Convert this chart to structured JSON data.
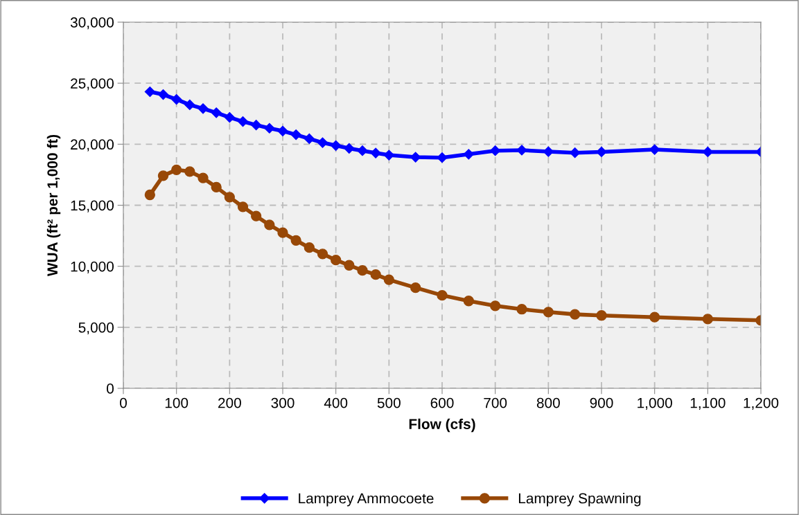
{
  "chart_data": {
    "type": "line",
    "xlabel": "Flow (cfs)",
    "ylabel": "WUA (ft² per 1,000 ft)",
    "x": [
      50,
      75,
      100,
      125,
      150,
      175,
      200,
      225,
      250,
      275,
      300,
      325,
      350,
      375,
      400,
      425,
      450,
      475,
      500,
      550,
      600,
      650,
      700,
      750,
      800,
      850,
      900,
      1000,
      1100,
      1200
    ],
    "series": [
      {
        "name": "Lamprey Ammocoete",
        "color": "#0000ff",
        "marker": "diamond",
        "values": [
          24300,
          24070,
          23670,
          23230,
          22920,
          22580,
          22200,
          21860,
          21570,
          21310,
          21080,
          20780,
          20450,
          20130,
          19890,
          19660,
          19470,
          19280,
          19110,
          18940,
          18900,
          19180,
          19470,
          19510,
          19390,
          19300,
          19370,
          19560,
          19370,
          19370
        ]
      },
      {
        "name": "Lamprey Spawning",
        "color": "#984807",
        "marker": "circle",
        "values": [
          15850,
          17420,
          17900,
          17760,
          17230,
          16480,
          15660,
          14870,
          14110,
          13390,
          12750,
          12120,
          11530,
          11010,
          10510,
          10080,
          9660,
          9320,
          8900,
          8240,
          7620,
          7160,
          6760,
          6480,
          6250,
          6060,
          5970,
          5830,
          5680,
          5570
        ]
      }
    ],
    "xlim": [
      0,
      1200
    ],
    "ylim": [
      0,
      30000
    ],
    "xticks": [
      0,
      100,
      200,
      300,
      400,
      500,
      600,
      700,
      800,
      900,
      {
        "value": 1000,
        "label": "1,000"
      },
      {
        "value": 1100,
        "label": "1,100"
      },
      {
        "value": 1200,
        "label": "1,200"
      }
    ],
    "yticks": [
      0,
      {
        "value": 5000,
        "label": "5,000"
      },
      {
        "value": 10000,
        "label": "10,000"
      },
      {
        "value": 15000,
        "label": "15,000"
      },
      {
        "value": 20000,
        "label": "20,000"
      },
      {
        "value": 25000,
        "label": "25,000"
      },
      {
        "value": 30000,
        "label": "30,000"
      }
    ],
    "grid": true,
    "legend": "bottom",
    "line_style": "solid"
  }
}
